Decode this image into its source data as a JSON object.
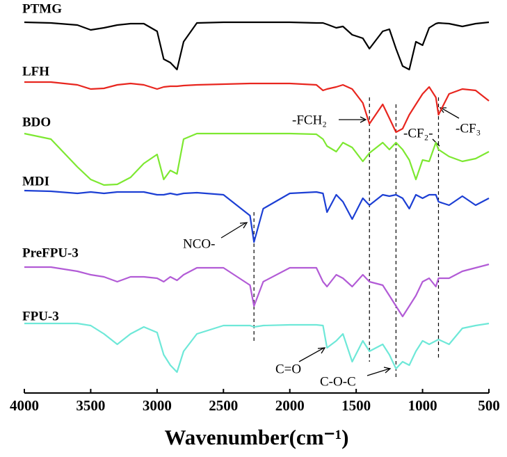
{
  "chart_data": {
    "type": "line",
    "x": [
      4000,
      3800,
      3600,
      3500,
      3400,
      3300,
      3200,
      3100,
      3000,
      2950,
      2900,
      2850,
      2800,
      2700,
      2500,
      2300,
      2270,
      2200,
      2000,
      1800,
      1750,
      1720,
      1650,
      1600,
      1530,
      1450,
      1400,
      1300,
      1250,
      1200,
      1150,
      1100,
      1050,
      1000,
      950,
      900,
      880,
      800,
      700,
      600,
      500
    ],
    "xlim": [
      4000,
      500
    ],
    "xticks": [
      4000,
      3500,
      3000,
      2500,
      2000,
      1500,
      1000,
      500
    ],
    "ylim": [
      0,
      560
    ],
    "xlabel": "Wavenumber(cm⁻¹)",
    "series": [
      {
        "name": "PTMG",
        "color": "#000000",
        "values": [
          533,
          532,
          529,
          522,
          525,
          529,
          531,
          531,
          520,
          480,
          475,
          465,
          505,
          532,
          533,
          533,
          533,
          533,
          533,
          532,
          532,
          530,
          525,
          527,
          515,
          510,
          495,
          520,
          523,
          495,
          470,
          465,
          505,
          500,
          525,
          531,
          532,
          531,
          527,
          531,
          533
        ]
      },
      {
        "name": "LFH",
        "color": "#e8261f",
        "values": [
          447,
          447,
          443,
          437,
          438,
          443,
          445,
          443,
          437,
          440,
          441,
          441,
          442,
          443,
          444,
          445,
          445,
          445,
          445,
          443,
          435,
          437,
          440,
          443,
          437,
          417,
          387,
          415,
          395,
          375,
          380,
          400,
          415,
          430,
          440,
          425,
          400,
          430,
          437,
          435,
          420
        ]
      },
      {
        "name": "BDO",
        "color": "#7de831",
        "values": [
          373,
          365,
          325,
          307,
          299,
          300,
          310,
          330,
          343,
          307,
          320,
          315,
          365,
          373,
          373,
          373,
          373,
          373,
          373,
          372,
          365,
          355,
          347,
          360,
          353,
          333,
          345,
          360,
          350,
          360,
          350,
          335,
          307,
          335,
          333,
          360,
          350,
          340,
          333,
          337,
          347
        ]
      },
      {
        "name": "MDI",
        "color": "#1c3fd4",
        "values": [
          291,
          290,
          287,
          289,
          287,
          289,
          289,
          289,
          285,
          285,
          287,
          285,
          287,
          288,
          285,
          255,
          217,
          265,
          287,
          289,
          287,
          260,
          285,
          275,
          250,
          280,
          270,
          285,
          283,
          285,
          280,
          265,
          285,
          280,
          285,
          285,
          275,
          270,
          283,
          270,
          280
        ]
      },
      {
        "name": "PreFPU-3",
        "color": "#b25bd6",
        "values": [
          181,
          181,
          175,
          170,
          167,
          160,
          167,
          167,
          165,
          160,
          167,
          162,
          170,
          180,
          180,
          155,
          125,
          160,
          180,
          180,
          160,
          153,
          170,
          165,
          153,
          170,
          160,
          155,
          140,
          125,
          110,
          125,
          140,
          160,
          165,
          153,
          165,
          165,
          175,
          180,
          185
        ]
      },
      {
        "name": "FPU-3",
        "color": "#6ee8d8",
        "values": [
          100,
          100,
          100,
          97,
          85,
          70,
          85,
          95,
          87,
          55,
          40,
          30,
          60,
          85,
          97,
          97,
          95,
          97,
          98,
          98,
          97,
          65,
          75,
          85,
          45,
          75,
          60,
          70,
          55,
          35,
          45,
          40,
          60,
          75,
          70,
          75,
          77,
          70,
          93,
          97,
          100
        ]
      }
    ],
    "reference_lines": [
      2270,
      1400,
      1200,
      880
    ],
    "annotations": [
      "-FCH₂",
      "-CF₂-",
      "-CF₃",
      "NCO-",
      "C=O",
      "C-O-C"
    ]
  }
}
